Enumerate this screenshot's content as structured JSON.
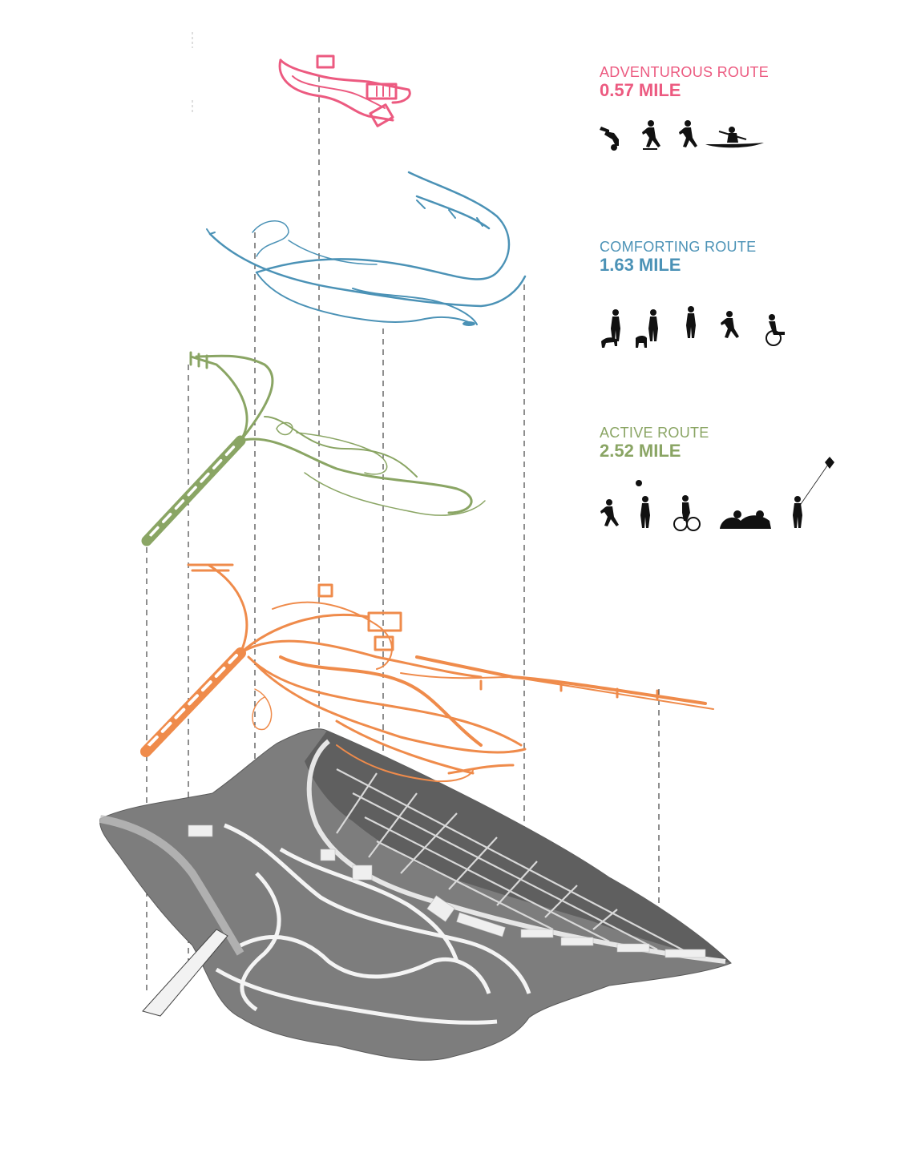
{
  "colors": {
    "adventurous": "#ec5a80",
    "comforting": "#4b92b6",
    "active": "#8aa564",
    "combined": "#ef8b4b",
    "leader_line": "#444444",
    "silhouette": "#111111",
    "map_base": "#8a8a8a"
  },
  "routes": [
    {
      "id": "adventurous",
      "name": "ADVENTUROUS ROUTE",
      "distance": "0.57 MILE",
      "activities": [
        "handstand-icon",
        "skateboarder-icon",
        "runner-icon",
        "kayaker-icon"
      ]
    },
    {
      "id": "comforting",
      "name": "COMFORTING ROUTE",
      "distance": "1.63 MILE",
      "activities": [
        "dog-walker-icon",
        "child-walker-icon",
        "walking-woman-icon",
        "jogger-icon",
        "wheelchair-user-icon"
      ]
    },
    {
      "id": "active",
      "name": "ACTIVE ROUTE",
      "distance": "2.52 MILE",
      "activities": [
        "runner-icon",
        "ball-player-icon",
        "cyclist-icon",
        "picnic-icon",
        "kite-flyer-icon"
      ]
    }
  ]
}
